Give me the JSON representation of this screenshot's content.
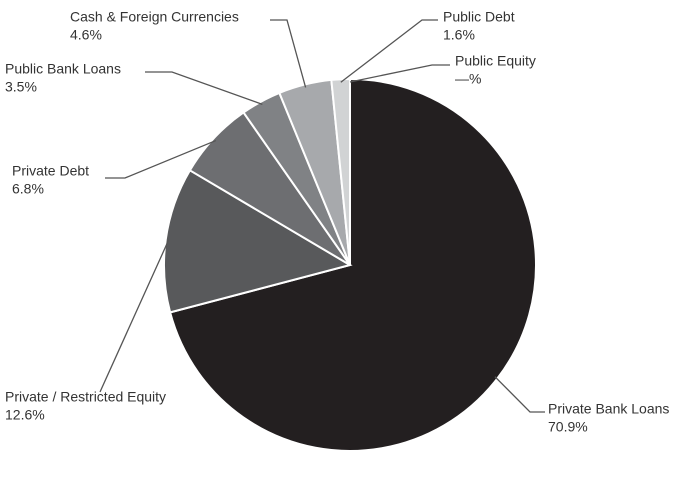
{
  "chart_data": {
    "type": "pie",
    "categories": [
      "Private Bank Loans",
      "Private / Restricted Equity",
      "Private Debt",
      "Public Bank Loans",
      "Cash & Foreign Currencies",
      "Public Debt",
      "Public Equity"
    ],
    "values": [
      70.9,
      12.6,
      6.8,
      3.5,
      4.6,
      1.6,
      0
    ],
    "value_labels": [
      "70.9%",
      "12.6%",
      "6.8%",
      "3.5%",
      "4.6%",
      "1.6%",
      "—%"
    ],
    "colors": [
      "#231f20",
      "#58595b",
      "#6d6e71",
      "#808285",
      "#a7a9ac",
      "#d1d3d4",
      "#e6e7e8"
    ]
  }
}
